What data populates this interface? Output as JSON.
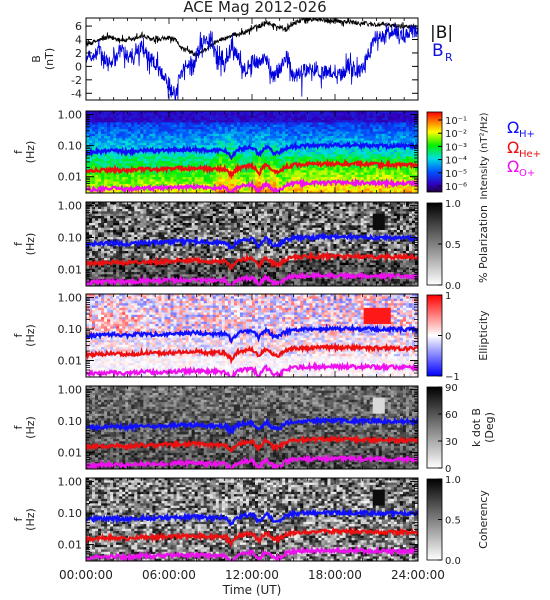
{
  "chart_data": {
    "type": "multi-panel spectrogram",
    "title": "ACE Mag 2012-026",
    "xlabel": "Time (UT)",
    "x_ticks": [
      "00:00:00",
      "06:00:00",
      "12:00:00",
      "18:00:00",
      "24:00:00"
    ],
    "xlim_hours": [
      0,
      24
    ],
    "panels": [
      {
        "id": "field",
        "type": "line",
        "ylabel_top": "B",
        "ylabel_bottom": "(nT)",
        "ylim": [
          -5,
          7.2
        ],
        "y_ticks": [
          "6",
          "4",
          "2",
          "0",
          "-2",
          "-4"
        ],
        "series": [
          {
            "name": "|B|",
            "color": "#000000",
            "x": [
              0,
              0.5,
              1,
              1.5,
              2,
              2.5,
              3,
              3.5,
              4,
              4.5,
              5,
              5.5,
              6,
              6.5,
              7,
              7.5,
              8,
              8.5,
              9,
              9.5,
              10,
              10.5,
              11,
              11.5,
              12,
              12.5,
              13,
              13.5,
              14,
              14.5,
              15,
              15.5,
              16,
              16.5,
              17,
              17.5,
              18,
              18.5,
              19,
              19.5,
              20,
              20.5,
              21,
              21.5,
              22,
              22.5,
              23,
              23.5,
              24
            ],
            "values": [
              3.2,
              3.6,
              3.9,
              4.3,
              4.2,
              4.0,
              3.8,
              4.1,
              4.6,
              4.2,
              3.8,
              4.0,
              4.3,
              3.8,
              2.6,
              2.2,
              1.6,
              2.4,
              3.0,
              3.9,
              4.1,
              4.6,
              4.8,
              5.1,
              5.6,
              6.0,
              6.6,
              6.2,
              5.8,
              5.5,
              6.4,
              6.8,
              7.0,
              7.0,
              6.9,
              6.8,
              6.9,
              6.7,
              6.6,
              6.5,
              6.4,
              6.3,
              6.2,
              6.2,
              6.1,
              6.0,
              6.0,
              6.0,
              5.9
            ]
          },
          {
            "name": "B_R",
            "color": "#0000dd",
            "x": [
              0,
              0.5,
              1,
              1.5,
              2,
              2.5,
              3,
              3.5,
              4,
              4.5,
              5,
              5.5,
              6,
              6.5,
              7,
              7.5,
              8,
              8.5,
              9,
              9.5,
              10,
              10.5,
              11,
              11.5,
              12,
              12.5,
              13,
              13.5,
              14,
              14.5,
              15,
              15.5,
              16,
              16.5,
              17,
              17.5,
              18,
              18.5,
              19,
              19.5,
              20,
              20.5,
              21,
              21.5,
              22,
              22.5,
              23,
              23.5,
              24
            ],
            "values": [
              1.8,
              1.5,
              2.3,
              0.8,
              0.6,
              2.6,
              1.4,
              1.0,
              2.8,
              1.6,
              0.4,
              -1.2,
              -2.6,
              -3.8,
              -0.2,
              0.4,
              1.6,
              4.2,
              3.6,
              1.2,
              0.2,
              2.8,
              1.5,
              -0.6,
              0.8,
              0.6,
              1.9,
              -1.6,
              -0.4,
              1.8,
              -1.8,
              -0.8,
              -0.6,
              -0.4,
              -0.8,
              -1.0,
              -0.6,
              -1.4,
              0.4,
              -1.2,
              -0.2,
              2.2,
              4.8,
              4.2,
              5.2,
              5.0,
              4.4,
              5.4,
              5.0
            ]
          }
        ],
        "legend": [
          "|B|",
          "B_R"
        ]
      },
      {
        "id": "intensity",
        "type": "heatmap",
        "ylabel_top": "f",
        "ylabel_bottom": "(Hz)",
        "y_ticks": [
          "1.00",
          "0.10",
          "0.01"
        ],
        "colorbar_label": "Intensity (nT²/Hz)",
        "colorbar_ticks": [
          "10⁻¹",
          "10⁻²",
          "10⁻³",
          "10⁻⁴",
          "10⁻⁵",
          "10⁻⁶"
        ],
        "colormap": "rainbow"
      },
      {
        "id": "polarization",
        "type": "heatmap",
        "ylabel_top": "f",
        "ylabel_bottom": "(Hz)",
        "y_ticks": [
          "1.00",
          "0.10",
          "0.01"
        ],
        "colorbar_label": "% Polarization",
        "colorbar_ticks": [
          "1.0",
          "0.5",
          "0.0"
        ],
        "colormap": "gray"
      },
      {
        "id": "ellipticity",
        "type": "heatmap",
        "ylabel_top": "f",
        "ylabel_bottom": "(Hz)",
        "y_ticks": [
          "1.00",
          "0.10",
          "0.01"
        ],
        "colorbar_label": "Ellipticity",
        "colorbar_ticks": [
          "1",
          "0",
          "−1"
        ],
        "colormap": "blue-white-red"
      },
      {
        "id": "kdotb",
        "type": "heatmap",
        "ylabel_top": "f",
        "ylabel_bottom": "(Hz)",
        "y_ticks": [
          "1.00",
          "0.10",
          "0.01"
        ],
        "colorbar_label_top": "k dot B",
        "colorbar_label_bottom": "(Deg)",
        "colorbar_ticks": [
          "90",
          "60",
          "30",
          "0"
        ],
        "colormap": "gray"
      },
      {
        "id": "coherency",
        "type": "heatmap",
        "ylabel_top": "f",
        "ylabel_bottom": "(Hz)",
        "y_ticks": [
          "1.00",
          "0.10",
          "0.01"
        ],
        "colorbar_label": "Coherency",
        "colorbar_ticks": [
          "1.0",
          "0.5",
          "0.0"
        ],
        "colormap": "gray"
      }
    ],
    "gyrofrequency_lines": [
      {
        "name": "Ω_H+",
        "color": "#1010ff",
        "x": [
          0,
          1,
          2,
          3,
          4,
          5,
          6,
          7,
          8,
          9,
          10,
          10.5,
          11,
          11.5,
          12,
          12.5,
          13,
          13.5,
          14,
          14.5,
          15,
          16,
          17,
          18,
          19,
          20,
          21,
          22,
          23,
          24
        ],
        "values": [
          0.06,
          0.065,
          0.068,
          0.062,
          0.07,
          0.068,
          0.072,
          0.074,
          0.075,
          0.07,
          0.072,
          0.045,
          0.075,
          0.085,
          0.09,
          0.05,
          0.095,
          0.06,
          0.06,
          0.085,
          0.095,
          0.1,
          0.102,
          0.104,
          0.103,
          0.101,
          0.099,
          0.098,
          0.097,
          0.095
        ]
      },
      {
        "name": "Ω_He+",
        "color": "#ee1010",
        "x": [
          0,
          1,
          2,
          3,
          4,
          5,
          6,
          7,
          8,
          9,
          10,
          10.5,
          11,
          11.5,
          12,
          12.5,
          13,
          13.5,
          14,
          14.5,
          15,
          16,
          17,
          18,
          19,
          20,
          21,
          22,
          23,
          24
        ],
        "values": [
          0.015,
          0.016,
          0.017,
          0.0155,
          0.0175,
          0.017,
          0.018,
          0.0185,
          0.019,
          0.0175,
          0.018,
          0.011,
          0.019,
          0.021,
          0.0225,
          0.0125,
          0.024,
          0.015,
          0.015,
          0.021,
          0.024,
          0.025,
          0.0255,
          0.026,
          0.0258,
          0.0253,
          0.0248,
          0.0245,
          0.0243,
          0.024
        ]
      },
      {
        "name": "Ω_O+",
        "color": "#ee10ee",
        "x": [
          0,
          1,
          2,
          3,
          4,
          5,
          6,
          7,
          8,
          9,
          10,
          10.5,
          11,
          11.5,
          12,
          12.5,
          13,
          13.5,
          14,
          14.5,
          15,
          16,
          17,
          18,
          19,
          20,
          21,
          22,
          23,
          24
        ],
        "values": [
          0.0038,
          0.004,
          0.0042,
          0.0039,
          0.0044,
          0.0042,
          0.0045,
          0.0046,
          0.0047,
          0.0044,
          0.0045,
          0.0028,
          0.0047,
          0.0053,
          0.0056,
          0.0031,
          0.006,
          0.0037,
          0.0037,
          0.0053,
          0.006,
          0.0063,
          0.0064,
          0.0065,
          0.0064,
          0.0063,
          0.0062,
          0.0061,
          0.0061,
          0.006
        ]
      }
    ],
    "freq_ylim": [
      0.003,
      1.3
    ]
  },
  "labels": {
    "title": "ACE Mag 2012-026",
    "legend_b": "|B|",
    "legend_br_main": "B",
    "legend_br_sub": "R",
    "omega_h_main": "Ω",
    "omega_h_sub": "H+",
    "omega_he_main": "Ω",
    "omega_he_sub": "He+",
    "omega_o_main": "Ω",
    "omega_o_sub": "O+",
    "xlabel": "Time (UT)"
  }
}
